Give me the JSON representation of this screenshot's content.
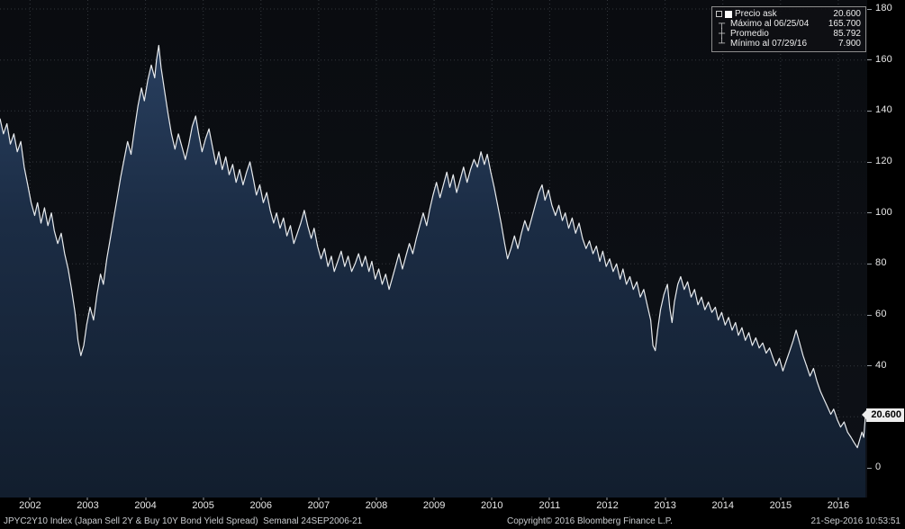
{
  "colors": {
    "background": "#000000",
    "area_top": "#2c4466",
    "area_mid": "#1b2c44",
    "area_bottom": "#121e2e",
    "line": "#e8ebee",
    "grid": "#33373c",
    "axis_text": "#e8e8e8",
    "badge_bg": "#ededed",
    "badge_text": "#000000"
  },
  "legend": {
    "rows": [
      {
        "icon_name": "series-swatch-icon",
        "glyph": "■",
        "label": "Precio ask",
        "value": "20.600"
      },
      {
        "icon_name": "max-marker-icon",
        "glyph": "┬",
        "label": "Máximo al 06/25/04",
        "value": "165.700"
      },
      {
        "icon_name": "mean-marker-icon",
        "glyph": "┼",
        "label": "Promedio",
        "value": "85.792"
      },
      {
        "icon_name": "min-marker-icon",
        "glyph": "┴",
        "label": "Mínimo al 07/29/16",
        "value": "7.900"
      }
    ]
  },
  "axis": {
    "y_ticks": [
      180,
      160,
      140,
      120,
      100,
      80,
      60,
      40,
      20,
      0
    ],
    "x_ticks": [
      {
        "label": "2002",
        "t": 2002.25
      },
      {
        "label": "2003",
        "t": 2003.25
      },
      {
        "label": "2004",
        "t": 2004.25
      },
      {
        "label": "2005",
        "t": 2005.25
      },
      {
        "label": "2006",
        "t": 2006.25
      },
      {
        "label": "2007",
        "t": 2007.25
      },
      {
        "label": "2008",
        "t": 2008.25
      },
      {
        "label": "2009",
        "t": 2009.25
      },
      {
        "label": "2010",
        "t": 2010.25
      },
      {
        "label": "2011",
        "t": 2011.25
      },
      {
        "label": "2012",
        "t": 2012.25
      },
      {
        "label": "2013",
        "t": 2013.25
      },
      {
        "label": "2014",
        "t": 2014.25
      },
      {
        "label": "2015",
        "t": 2015.25
      },
      {
        "label": "2016",
        "t": 2016.25
      }
    ],
    "last_value_label": "20.600"
  },
  "status_bar": {
    "left": "JPYC2Y10 Index (Japan Sell 2Y & Buy 10Y Bond Yield Spread)  Semanal 24SEP2006-21",
    "center": "Copyright© 2016 Bloomberg Finance L.P.",
    "right": "21-Sep-2016 10:53:51"
  },
  "chart_data": {
    "type": "area",
    "title": "JPYC2Y10 Index (Japan Sell 2Y & Buy 10Y Bond Yield Spread)",
    "frequency": "Semanal",
    "xlabel": "",
    "ylabel": "",
    "xlim": [
      2001.73,
      2016.75
    ],
    "ylim": [
      0,
      180
    ],
    "grid": true,
    "legend_position": "top-right",
    "stats": {
      "last": 20.6,
      "max": {
        "date": "06/25/04",
        "value": 165.7
      },
      "mean": 85.792,
      "min": {
        "date": "07/29/16",
        "value": 7.9
      }
    },
    "series": [
      {
        "name": "Precio ask",
        "points": [
          [
            2001.73,
            137
          ],
          [
            2001.79,
            131
          ],
          [
            2001.85,
            135
          ],
          [
            2001.91,
            127
          ],
          [
            2001.97,
            131
          ],
          [
            2002.03,
            124
          ],
          [
            2002.09,
            128
          ],
          [
            2002.15,
            118
          ],
          [
            2002.21,
            111
          ],
          [
            2002.27,
            104
          ],
          [
            2002.33,
            99
          ],
          [
            2002.38,
            104
          ],
          [
            2002.44,
            96
          ],
          [
            2002.5,
            102
          ],
          [
            2002.56,
            95
          ],
          [
            2002.62,
            100
          ],
          [
            2002.67,
            93
          ],
          [
            2002.73,
            88
          ],
          [
            2002.79,
            92
          ],
          [
            2002.85,
            84
          ],
          [
            2002.91,
            78
          ],
          [
            2002.97,
            70
          ],
          [
            2003.03,
            61
          ],
          [
            2003.08,
            50
          ],
          [
            2003.13,
            44
          ],
          [
            2003.18,
            48
          ],
          [
            2003.23,
            56
          ],
          [
            2003.29,
            63
          ],
          [
            2003.35,
            58
          ],
          [
            2003.41,
            68
          ],
          [
            2003.47,
            76
          ],
          [
            2003.52,
            72
          ],
          [
            2003.58,
            82
          ],
          [
            2003.64,
            90
          ],
          [
            2003.7,
            98
          ],
          [
            2003.76,
            106
          ],
          [
            2003.82,
            114
          ],
          [
            2003.88,
            121
          ],
          [
            2003.94,
            128
          ],
          [
            2004.0,
            123
          ],
          [
            2004.06,
            133
          ],
          [
            2004.12,
            142
          ],
          [
            2004.18,
            149
          ],
          [
            2004.23,
            144
          ],
          [
            2004.29,
            152
          ],
          [
            2004.35,
            158
          ],
          [
            2004.41,
            153
          ],
          [
            2004.44,
            160
          ],
          [
            2004.48,
            165.7
          ],
          [
            2004.52,
            157
          ],
          [
            2004.58,
            148
          ],
          [
            2004.64,
            139
          ],
          [
            2004.7,
            131
          ],
          [
            2004.76,
            125
          ],
          [
            2004.82,
            131
          ],
          [
            2004.88,
            126
          ],
          [
            2004.94,
            121
          ],
          [
            2005.0,
            127
          ],
          [
            2005.06,
            134
          ],
          [
            2005.12,
            138
          ],
          [
            2005.17,
            131
          ],
          [
            2005.23,
            124
          ],
          [
            2005.29,
            129
          ],
          [
            2005.35,
            133
          ],
          [
            2005.41,
            126
          ],
          [
            2005.47,
            119
          ],
          [
            2005.52,
            124
          ],
          [
            2005.58,
            117
          ],
          [
            2005.64,
            122
          ],
          [
            2005.7,
            115
          ],
          [
            2005.76,
            119
          ],
          [
            2005.82,
            112
          ],
          [
            2005.88,
            117
          ],
          [
            2005.94,
            111
          ],
          [
            2006.0,
            116
          ],
          [
            2006.06,
            120
          ],
          [
            2006.12,
            113
          ],
          [
            2006.17,
            107
          ],
          [
            2006.23,
            111
          ],
          [
            2006.29,
            104
          ],
          [
            2006.35,
            108
          ],
          [
            2006.41,
            101
          ],
          [
            2006.47,
            96
          ],
          [
            2006.52,
            100
          ],
          [
            2006.58,
            94
          ],
          [
            2006.64,
            98
          ],
          [
            2006.7,
            91
          ],
          [
            2006.76,
            95
          ],
          [
            2006.82,
            88
          ],
          [
            2006.88,
            92
          ],
          [
            2006.94,
            96
          ],
          [
            2007.0,
            101
          ],
          [
            2007.06,
            95
          ],
          [
            2007.12,
            90
          ],
          [
            2007.17,
            94
          ],
          [
            2007.23,
            87
          ],
          [
            2007.29,
            82
          ],
          [
            2007.35,
            86
          ],
          [
            2007.41,
            79
          ],
          [
            2007.47,
            83
          ],
          [
            2007.52,
            77
          ],
          [
            2007.58,
            81
          ],
          [
            2007.64,
            85
          ],
          [
            2007.7,
            79
          ],
          [
            2007.76,
            83
          ],
          [
            2007.82,
            77
          ],
          [
            2007.88,
            80
          ],
          [
            2007.94,
            84
          ],
          [
            2008.0,
            79
          ],
          [
            2008.06,
            83
          ],
          [
            2008.12,
            77
          ],
          [
            2008.17,
            81
          ],
          [
            2008.23,
            74
          ],
          [
            2008.29,
            78
          ],
          [
            2008.35,
            72
          ],
          [
            2008.41,
            76
          ],
          [
            2008.47,
            70
          ],
          [
            2008.52,
            74
          ],
          [
            2008.58,
            79
          ],
          [
            2008.64,
            84
          ],
          [
            2008.7,
            78
          ],
          [
            2008.76,
            83
          ],
          [
            2008.82,
            88
          ],
          [
            2008.88,
            84
          ],
          [
            2008.94,
            90
          ],
          [
            2009.0,
            95
          ],
          [
            2009.06,
            100
          ],
          [
            2009.12,
            95
          ],
          [
            2009.17,
            101
          ],
          [
            2009.23,
            107
          ],
          [
            2009.29,
            112
          ],
          [
            2009.35,
            106
          ],
          [
            2009.41,
            111
          ],
          [
            2009.47,
            116
          ],
          [
            2009.52,
            110
          ],
          [
            2009.58,
            115
          ],
          [
            2009.64,
            108
          ],
          [
            2009.7,
            113
          ],
          [
            2009.76,
            118
          ],
          [
            2009.82,
            112
          ],
          [
            2009.88,
            117
          ],
          [
            2009.94,
            121
          ],
          [
            2010.0,
            118
          ],
          [
            2010.06,
            124
          ],
          [
            2010.12,
            119
          ],
          [
            2010.17,
            123
          ],
          [
            2010.23,
            116
          ],
          [
            2010.29,
            110
          ],
          [
            2010.35,
            103
          ],
          [
            2010.41,
            96
          ],
          [
            2010.47,
            88
          ],
          [
            2010.52,
            82
          ],
          [
            2010.58,
            86
          ],
          [
            2010.64,
            91
          ],
          [
            2010.7,
            86
          ],
          [
            2010.76,
            92
          ],
          [
            2010.82,
            97
          ],
          [
            2010.88,
            93
          ],
          [
            2010.94,
            98
          ],
          [
            2011.0,
            103
          ],
          [
            2011.06,
            108
          ],
          [
            2011.12,
            111
          ],
          [
            2011.17,
            105
          ],
          [
            2011.23,
            109
          ],
          [
            2011.29,
            103
          ],
          [
            2011.35,
            99
          ],
          [
            2011.41,
            103
          ],
          [
            2011.47,
            97
          ],
          [
            2011.52,
            100
          ],
          [
            2011.58,
            94
          ],
          [
            2011.64,
            98
          ],
          [
            2011.7,
            92
          ],
          [
            2011.76,
            96
          ],
          [
            2011.82,
            90
          ],
          [
            2011.88,
            86
          ],
          [
            2011.94,
            89
          ],
          [
            2012.0,
            84
          ],
          [
            2012.06,
            87
          ],
          [
            2012.12,
            81
          ],
          [
            2012.17,
            85
          ],
          [
            2012.23,
            79
          ],
          [
            2012.29,
            82
          ],
          [
            2012.35,
            77
          ],
          [
            2012.41,
            80
          ],
          [
            2012.47,
            74
          ],
          [
            2012.52,
            78
          ],
          [
            2012.58,
            72
          ],
          [
            2012.64,
            75
          ],
          [
            2012.7,
            70
          ],
          [
            2012.76,
            73
          ],
          [
            2012.82,
            67
          ],
          [
            2012.88,
            70
          ],
          [
            2012.94,
            64
          ],
          [
            2013.0,
            58
          ],
          [
            2013.04,
            48
          ],
          [
            2013.08,
            46
          ],
          [
            2013.12,
            54
          ],
          [
            2013.17,
            62
          ],
          [
            2013.23,
            68
          ],
          [
            2013.29,
            72
          ],
          [
            2013.33,
            63
          ],
          [
            2013.37,
            57
          ],
          [
            2013.41,
            65
          ],
          [
            2013.47,
            72
          ],
          [
            2013.52,
            75
          ],
          [
            2013.58,
            70
          ],
          [
            2013.64,
            73
          ],
          [
            2013.7,
            67
          ],
          [
            2013.76,
            70
          ],
          [
            2013.82,
            64
          ],
          [
            2013.88,
            67
          ],
          [
            2013.94,
            62
          ],
          [
            2014.0,
            65
          ],
          [
            2014.06,
            61
          ],
          [
            2014.12,
            63
          ],
          [
            2014.17,
            58
          ],
          [
            2014.23,
            61
          ],
          [
            2014.29,
            56
          ],
          [
            2014.35,
            59
          ],
          [
            2014.41,
            54
          ],
          [
            2014.47,
            57
          ],
          [
            2014.52,
            52
          ],
          [
            2014.58,
            55
          ],
          [
            2014.64,
            50
          ],
          [
            2014.7,
            53
          ],
          [
            2014.76,
            48
          ],
          [
            2014.82,
            51
          ],
          [
            2014.88,
            47
          ],
          [
            2014.94,
            49
          ],
          [
            2015.0,
            45
          ],
          [
            2015.06,
            47
          ],
          [
            2015.12,
            43
          ],
          [
            2015.17,
            40
          ],
          [
            2015.23,
            43
          ],
          [
            2015.29,
            38
          ],
          [
            2015.35,
            42
          ],
          [
            2015.41,
            46
          ],
          [
            2015.47,
            50
          ],
          [
            2015.52,
            54
          ],
          [
            2015.58,
            49
          ],
          [
            2015.64,
            44
          ],
          [
            2015.7,
            40
          ],
          [
            2015.76,
            36
          ],
          [
            2015.82,
            39
          ],
          [
            2015.88,
            34
          ],
          [
            2015.94,
            30
          ],
          [
            2016.0,
            27
          ],
          [
            2016.06,
            24
          ],
          [
            2016.12,
            21
          ],
          [
            2016.17,
            23
          ],
          [
            2016.23,
            19
          ],
          [
            2016.29,
            16
          ],
          [
            2016.35,
            18
          ],
          [
            2016.41,
            14
          ],
          [
            2016.47,
            12
          ],
          [
            2016.52,
            10
          ],
          [
            2016.58,
            7.9
          ],
          [
            2016.62,
            11
          ],
          [
            2016.66,
            14
          ],
          [
            2016.69,
            12
          ],
          [
            2016.72,
            20.6
          ]
        ]
      }
    ]
  }
}
